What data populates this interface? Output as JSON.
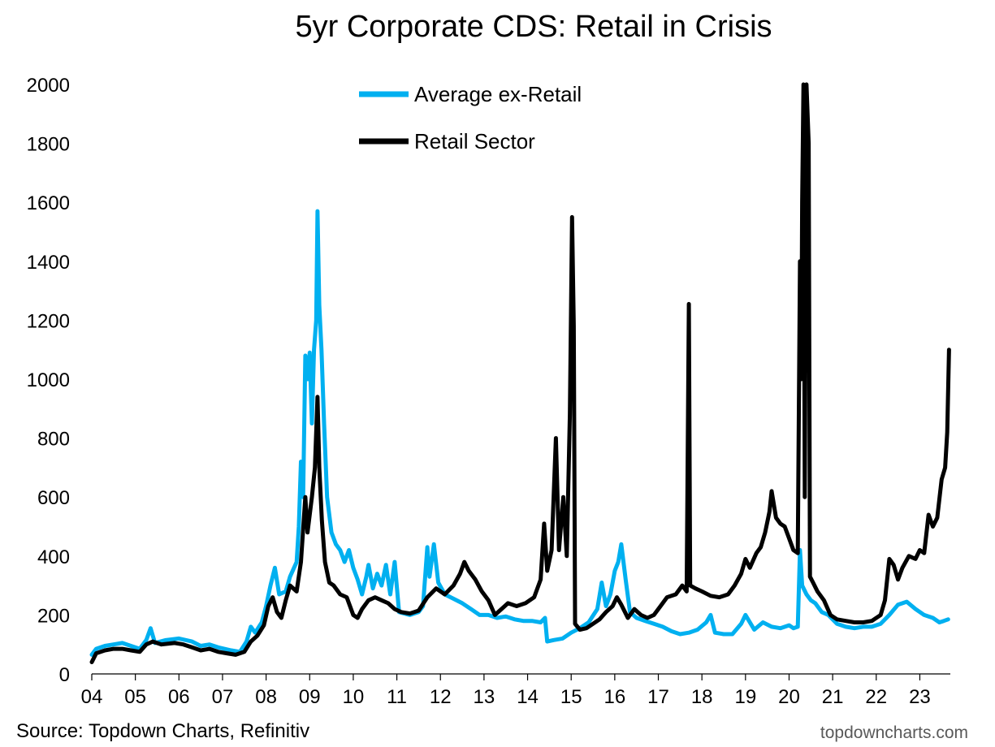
{
  "chart_data": {
    "type": "line",
    "title": "5yr Corporate CDS: Retail in Crisis",
    "xlabel": "",
    "ylabel": "",
    "ylim": [
      0,
      2000
    ],
    "yticks": [
      0,
      200,
      400,
      600,
      800,
      1000,
      1200,
      1400,
      1600,
      1800,
      2000
    ],
    "xlim": [
      2004,
      2023.7
    ],
    "xticks": [
      "04",
      "05",
      "06",
      "07",
      "08",
      "09",
      "10",
      "11",
      "12",
      "13",
      "14",
      "15",
      "16",
      "17",
      "18",
      "19",
      "20",
      "21",
      "22",
      "23"
    ],
    "legend_position": "top-center",
    "series": [
      {
        "name": "Average ex-Retail",
        "color": "#00B0F0",
        "points": [
          [
            2004.0,
            65
          ],
          [
            2004.1,
            85
          ],
          [
            2004.3,
            95
          ],
          [
            2004.5,
            100
          ],
          [
            2004.7,
            105
          ],
          [
            2004.9,
            95
          ],
          [
            2005.1,
            85
          ],
          [
            2005.25,
            115
          ],
          [
            2005.35,
            155
          ],
          [
            2005.45,
            105
          ],
          [
            2005.7,
            115
          ],
          [
            2006.0,
            120
          ],
          [
            2006.3,
            110
          ],
          [
            2006.5,
            95
          ],
          [
            2006.7,
            100
          ],
          [
            2006.9,
            90
          ],
          [
            2007.2,
            80
          ],
          [
            2007.4,
            75
          ],
          [
            2007.55,
            110
          ],
          [
            2007.65,
            160
          ],
          [
            2007.75,
            140
          ],
          [
            2007.9,
            175
          ],
          [
            2008.0,
            230
          ],
          [
            2008.1,
            300
          ],
          [
            2008.2,
            360
          ],
          [
            2008.3,
            270
          ],
          [
            2008.45,
            280
          ],
          [
            2008.55,
            330
          ],
          [
            2008.7,
            380
          ],
          [
            2008.75,
            500
          ],
          [
            2008.8,
            720
          ],
          [
            2008.85,
            600
          ],
          [
            2008.9,
            1080
          ],
          [
            2008.95,
            1000
          ],
          [
            2009.0,
            1090
          ],
          [
            2009.05,
            850
          ],
          [
            2009.1,
            1100
          ],
          [
            2009.15,
            1200
          ],
          [
            2009.18,
            1570
          ],
          [
            2009.22,
            1250
          ],
          [
            2009.27,
            1100
          ],
          [
            2009.33,
            850
          ],
          [
            2009.4,
            600
          ],
          [
            2009.5,
            480
          ],
          [
            2009.6,
            440
          ],
          [
            2009.7,
            420
          ],
          [
            2009.8,
            380
          ],
          [
            2009.9,
            420
          ],
          [
            2010.0,
            360
          ],
          [
            2010.1,
            320
          ],
          [
            2010.2,
            270
          ],
          [
            2010.3,
            330
          ],
          [
            2010.35,
            370
          ],
          [
            2010.45,
            290
          ],
          [
            2010.55,
            340
          ],
          [
            2010.65,
            300
          ],
          [
            2010.75,
            370
          ],
          [
            2010.85,
            270
          ],
          [
            2010.95,
            380
          ],
          [
            2011.05,
            210
          ],
          [
            2011.3,
            200
          ],
          [
            2011.5,
            210
          ],
          [
            2011.6,
            230
          ],
          [
            2011.7,
            430
          ],
          [
            2011.75,
            330
          ],
          [
            2011.85,
            440
          ],
          [
            2011.95,
            310
          ],
          [
            2012.1,
            270
          ],
          [
            2012.3,
            255
          ],
          [
            2012.5,
            240
          ],
          [
            2012.7,
            220
          ],
          [
            2012.9,
            200
          ],
          [
            2013.1,
            200
          ],
          [
            2013.3,
            190
          ],
          [
            2013.5,
            195
          ],
          [
            2013.7,
            185
          ],
          [
            2013.9,
            180
          ],
          [
            2014.1,
            180
          ],
          [
            2014.3,
            175
          ],
          [
            2014.4,
            190
          ],
          [
            2014.45,
            110
          ],
          [
            2014.6,
            115
          ],
          [
            2014.8,
            120
          ],
          [
            2015.0,
            140
          ],
          [
            2015.2,
            155
          ],
          [
            2015.4,
            175
          ],
          [
            2015.6,
            220
          ],
          [
            2015.7,
            310
          ],
          [
            2015.8,
            230
          ],
          [
            2015.9,
            270
          ],
          [
            2016.0,
            350
          ],
          [
            2016.08,
            380
          ],
          [
            2016.15,
            440
          ],
          [
            2016.25,
            320
          ],
          [
            2016.35,
            210
          ],
          [
            2016.5,
            190
          ],
          [
            2016.7,
            180
          ],
          [
            2016.9,
            170
          ],
          [
            2017.1,
            160
          ],
          [
            2017.3,
            145
          ],
          [
            2017.5,
            135
          ],
          [
            2017.7,
            140
          ],
          [
            2017.9,
            150
          ],
          [
            2018.1,
            175
          ],
          [
            2018.2,
            200
          ],
          [
            2018.3,
            140
          ],
          [
            2018.5,
            135
          ],
          [
            2018.7,
            135
          ],
          [
            2018.9,
            170
          ],
          [
            2019.0,
            200
          ],
          [
            2019.2,
            150
          ],
          [
            2019.4,
            175
          ],
          [
            2019.6,
            160
          ],
          [
            2019.8,
            155
          ],
          [
            2020.0,
            165
          ],
          [
            2020.1,
            155
          ],
          [
            2020.2,
            160
          ],
          [
            2020.25,
            420
          ],
          [
            2020.3,
            300
          ],
          [
            2020.4,
            270
          ],
          [
            2020.5,
            250
          ],
          [
            2020.6,
            240
          ],
          [
            2020.75,
            210
          ],
          [
            2020.9,
            200
          ],
          [
            2021.1,
            170
          ],
          [
            2021.3,
            160
          ],
          [
            2021.5,
            155
          ],
          [
            2021.7,
            160
          ],
          [
            2021.9,
            160
          ],
          [
            2022.1,
            170
          ],
          [
            2022.3,
            200
          ],
          [
            2022.5,
            235
          ],
          [
            2022.7,
            245
          ],
          [
            2022.9,
            220
          ],
          [
            2023.1,
            200
          ],
          [
            2023.3,
            190
          ],
          [
            2023.45,
            175
          ],
          [
            2023.55,
            180
          ],
          [
            2023.65,
            185
          ]
        ]
      },
      {
        "name": "Retail Sector",
        "color": "#000000",
        "points": [
          [
            2004.0,
            40
          ],
          [
            2004.1,
            70
          ],
          [
            2004.3,
            80
          ],
          [
            2004.5,
            85
          ],
          [
            2004.7,
            85
          ],
          [
            2004.9,
            80
          ],
          [
            2005.1,
            75
          ],
          [
            2005.25,
            100
          ],
          [
            2005.4,
            110
          ],
          [
            2005.6,
            100
          ],
          [
            2005.9,
            105
          ],
          [
            2006.1,
            100
          ],
          [
            2006.3,
            90
          ],
          [
            2006.5,
            80
          ],
          [
            2006.7,
            85
          ],
          [
            2006.9,
            75
          ],
          [
            2007.1,
            70
          ],
          [
            2007.3,
            65
          ],
          [
            2007.5,
            75
          ],
          [
            2007.65,
            110
          ],
          [
            2007.8,
            130
          ],
          [
            2007.95,
            165
          ],
          [
            2008.05,
            230
          ],
          [
            2008.15,
            260
          ],
          [
            2008.25,
            210
          ],
          [
            2008.35,
            190
          ],
          [
            2008.45,
            250
          ],
          [
            2008.55,
            300
          ],
          [
            2008.7,
            280
          ],
          [
            2008.8,
            380
          ],
          [
            2008.9,
            600
          ],
          [
            2008.95,
            480
          ],
          [
            2009.05,
            600
          ],
          [
            2009.12,
            700
          ],
          [
            2009.18,
            940
          ],
          [
            2009.22,
            700
          ],
          [
            2009.28,
            520
          ],
          [
            2009.35,
            380
          ],
          [
            2009.45,
            310
          ],
          [
            2009.55,
            300
          ],
          [
            2009.7,
            270
          ],
          [
            2009.85,
            260
          ],
          [
            2010.0,
            200
          ],
          [
            2010.1,
            190
          ],
          [
            2010.2,
            220
          ],
          [
            2010.35,
            250
          ],
          [
            2010.5,
            260
          ],
          [
            2010.65,
            250
          ],
          [
            2010.8,
            240
          ],
          [
            2010.95,
            220
          ],
          [
            2011.1,
            210
          ],
          [
            2011.3,
            205
          ],
          [
            2011.5,
            215
          ],
          [
            2011.7,
            260
          ],
          [
            2011.9,
            290
          ],
          [
            2012.1,
            270
          ],
          [
            2012.3,
            300
          ],
          [
            2012.45,
            340
          ],
          [
            2012.55,
            380
          ],
          [
            2012.65,
            350
          ],
          [
            2012.8,
            320
          ],
          [
            2012.95,
            280
          ],
          [
            2013.1,
            250
          ],
          [
            2013.25,
            200
          ],
          [
            2013.4,
            220
          ],
          [
            2013.55,
            240
          ],
          [
            2013.75,
            230
          ],
          [
            2013.95,
            240
          ],
          [
            2014.15,
            260
          ],
          [
            2014.3,
            320
          ],
          [
            2014.38,
            510
          ],
          [
            2014.45,
            350
          ],
          [
            2014.55,
            420
          ],
          [
            2014.65,
            800
          ],
          [
            2014.72,
            420
          ],
          [
            2014.82,
            600
          ],
          [
            2014.9,
            400
          ],
          [
            2014.97,
            880
          ],
          [
            2015.02,
            1550
          ],
          [
            2015.06,
            1180
          ],
          [
            2015.09,
            170
          ],
          [
            2015.2,
            150
          ],
          [
            2015.35,
            155
          ],
          [
            2015.5,
            170
          ],
          [
            2015.65,
            185
          ],
          [
            2015.8,
            210
          ],
          [
            2015.95,
            230
          ],
          [
            2016.05,
            260
          ],
          [
            2016.15,
            235
          ],
          [
            2016.3,
            190
          ],
          [
            2016.45,
            220
          ],
          [
            2016.6,
            200
          ],
          [
            2016.75,
            190
          ],
          [
            2016.9,
            200
          ],
          [
            2017.05,
            230
          ],
          [
            2017.2,
            260
          ],
          [
            2017.4,
            270
          ],
          [
            2017.55,
            300
          ],
          [
            2017.65,
            280
          ],
          [
            2017.7,
            1255
          ],
          [
            2017.73,
            300
          ],
          [
            2017.85,
            290
          ],
          [
            2018.0,
            280
          ],
          [
            2018.2,
            265
          ],
          [
            2018.4,
            260
          ],
          [
            2018.6,
            270
          ],
          [
            2018.75,
            300
          ],
          [
            2018.9,
            340
          ],
          [
            2019.0,
            390
          ],
          [
            2019.1,
            360
          ],
          [
            2019.25,
            410
          ],
          [
            2019.35,
            430
          ],
          [
            2019.45,
            480
          ],
          [
            2019.55,
            550
          ],
          [
            2019.6,
            620
          ],
          [
            2019.7,
            530
          ],
          [
            2019.8,
            510
          ],
          [
            2019.9,
            500
          ],
          [
            2020.0,
            460
          ],
          [
            2020.1,
            420
          ],
          [
            2020.2,
            410
          ],
          [
            2020.25,
            1400
          ],
          [
            2020.28,
            1000
          ],
          [
            2020.3,
            1600
          ],
          [
            2020.33,
            2000
          ],
          [
            2020.36,
            600
          ],
          [
            2020.4,
            2000
          ],
          [
            2020.45,
            1800
          ],
          [
            2020.48,
            330
          ],
          [
            2020.55,
            310
          ],
          [
            2020.65,
            280
          ],
          [
            2020.8,
            250
          ],
          [
            2020.95,
            200
          ],
          [
            2021.1,
            185
          ],
          [
            2021.3,
            180
          ],
          [
            2021.5,
            175
          ],
          [
            2021.7,
            175
          ],
          [
            2021.9,
            180
          ],
          [
            2022.1,
            200
          ],
          [
            2022.2,
            250
          ],
          [
            2022.3,
            390
          ],
          [
            2022.4,
            370
          ],
          [
            2022.5,
            320
          ],
          [
            2022.6,
            360
          ],
          [
            2022.75,
            400
          ],
          [
            2022.9,
            390
          ],
          [
            2023.0,
            420
          ],
          [
            2023.1,
            410
          ],
          [
            2023.2,
            540
          ],
          [
            2023.3,
            500
          ],
          [
            2023.4,
            530
          ],
          [
            2023.5,
            660
          ],
          [
            2023.58,
            700
          ],
          [
            2023.63,
            820
          ],
          [
            2023.67,
            1100
          ]
        ]
      }
    ]
  },
  "footer": {
    "source": "Source: Topdown Charts, Refinitiv",
    "brand": "topdowncharts.com"
  }
}
